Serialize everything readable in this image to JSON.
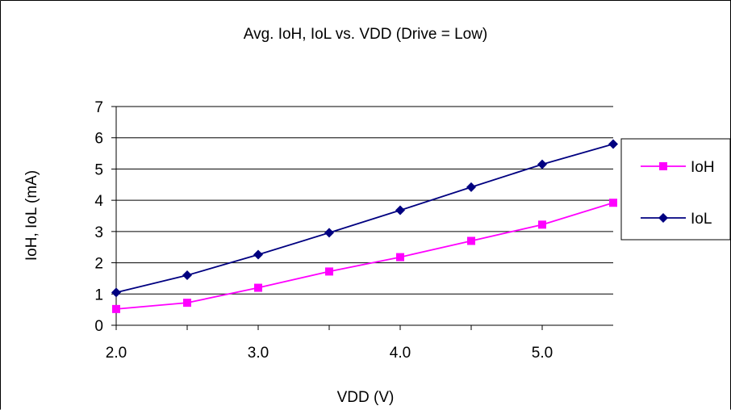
{
  "chart_data": {
    "type": "line",
    "title": "Avg. IoH, IoL vs. VDD (Drive = Low)",
    "xlabel": "VDD (V)",
    "ylabel": "IoH, IoL (mA)",
    "x": [
      2.0,
      2.5,
      3.0,
      3.5,
      4.0,
      4.5,
      5.0,
      5.5
    ],
    "xlim": [
      2.0,
      5.5
    ],
    "ylim": [
      0,
      7
    ],
    "x_ticks": [
      "2.0",
      "3.0",
      "4.0",
      "5.0"
    ],
    "y_ticks": [
      "0",
      "1",
      "2",
      "3",
      "4",
      "5",
      "6",
      "7"
    ],
    "grid": "horizontal",
    "legend_position": "right",
    "series": [
      {
        "name": "IoH",
        "color": "#ff00ff",
        "marker": "square",
        "values": [
          0.52,
          0.72,
          1.2,
          1.72,
          2.18,
          2.7,
          3.22,
          3.92
        ]
      },
      {
        "name": "IoL",
        "color": "#000080",
        "marker": "diamond",
        "values": [
          1.05,
          1.6,
          2.26,
          2.96,
          3.68,
          4.42,
          5.15,
          5.8
        ]
      }
    ]
  }
}
